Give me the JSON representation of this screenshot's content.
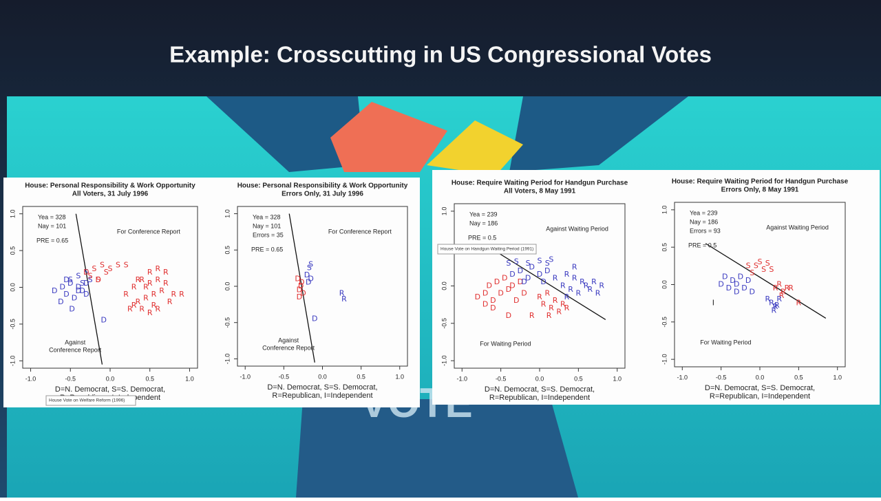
{
  "slide_title": "Example: Crosscutting in US Congressional Votes",
  "background_word": "VOTE",
  "tooltips": [
    "House Vote on Welfare Reform (1996)",
    "House Vote on Handgun Waiting Period (1991)"
  ],
  "chart_data": [
    {
      "type": "scatter",
      "title": "House: Personal Responsibility & Work Opportunity",
      "subtitle": "All Voters, 31 July 1996",
      "xlim": [
        -1.1,
        1.1
      ],
      "ylim": [
        -1.1,
        1.1
      ],
      "xticks": [
        {
          "value": -1,
          "label": "-1.0"
        },
        {
          "value": -0.5,
          "label": "-0.5"
        },
        {
          "value": 0,
          "label": "0.0"
        },
        {
          "value": 0.5,
          "label": "0.5"
        },
        {
          "value": 1,
          "label": "1.0"
        }
      ],
      "yticks": [
        {
          "value": -1,
          "label": "-1.0"
        },
        {
          "value": -0.5,
          "label": "-0.5"
        },
        {
          "value": 0,
          "label": "0.0"
        },
        {
          "value": 0.5,
          "label": "0.5"
        },
        {
          "value": 1,
          "label": "1.0"
        }
      ],
      "annotations": {
        "yea": "Yea = 328",
        "nay": "Nay = 101",
        "pre": "PRE = 0.65",
        "upper": "For Conference Report",
        "lower": [
          "Against",
          "Conference Report"
        ]
      },
      "caption": [
        "D=N. Democrat, S=S. Democrat,",
        "R=Republican, I=Independent"
      ],
      "cut_line": {
        "x": [
          -0.43,
          -0.1
        ],
        "y": [
          1.0,
          -1.05
        ]
      },
      "series": [
        {
          "name": "D",
          "color": "#3a3ac0",
          "x": [
            -0.7,
            -0.6,
            -0.55,
            -0.5,
            -0.45,
            -0.4,
            -0.35,
            -0.3,
            -0.62,
            -0.48,
            -0.4,
            -0.3,
            -0.08,
            -0.55
          ],
          "values": [
            -0.05,
            0.0,
            -0.1,
            0.05,
            -0.15,
            0.0,
            -0.05,
            0.05,
            -0.2,
            -0.3,
            -0.05,
            -0.1,
            -0.45,
            0.1
          ]
        },
        {
          "name": "S",
          "color": "#3a3ac0",
          "x": [
            -0.5,
            -0.4,
            -0.35,
            -0.3,
            -0.25
          ],
          "values": [
            0.1,
            0.15,
            0.05,
            0.2,
            0.1
          ]
        },
        {
          "name": "S",
          "color": "#e03030",
          "x": [
            -0.25,
            -0.2,
            -0.1,
            -0.05,
            0.0,
            0.1,
            0.2,
            -0.15
          ],
          "values": [
            0.15,
            0.25,
            0.3,
            0.2,
            0.25,
            0.3,
            0.3,
            0.1
          ]
        },
        {
          "name": "D",
          "color": "#e03030",
          "x": [
            -0.3,
            -0.15
          ],
          "values": [
            0.2,
            0.1
          ]
        },
        {
          "name": "R",
          "color": "#e03030",
          "x": [
            0.2,
            0.25,
            0.3,
            0.35,
            0.4,
            0.45,
            0.5,
            0.55,
            0.6,
            0.65,
            0.7,
            0.8,
            0.3,
            0.4,
            0.5,
            0.6,
            0.7,
            0.45,
            0.55,
            0.35,
            0.75,
            0.9,
            0.6,
            0.5
          ],
          "values": [
            -0.1,
            -0.3,
            0.0,
            -0.2,
            0.1,
            -0.15,
            0.05,
            -0.25,
            0.1,
            -0.05,
            0.2,
            -0.1,
            -0.25,
            -0.3,
            0.2,
            -0.3,
            0.05,
            0.0,
            -0.1,
            0.1,
            -0.2,
            -0.1,
            0.25,
            -0.35
          ]
        }
      ]
    },
    {
      "type": "scatter",
      "title": "House: Personal Responsibility & Work Opportunity",
      "subtitle": "Errors Only, 31 July 1996",
      "xlim": [
        -1.1,
        1.1
      ],
      "ylim": [
        -1.1,
        1.1
      ],
      "xticks": [
        {
          "value": -1,
          "label": "-1.0"
        },
        {
          "value": -0.5,
          "label": "-0.5"
        },
        {
          "value": 0,
          "label": "0.0"
        },
        {
          "value": 0.5,
          "label": "0.5"
        },
        {
          "value": 1,
          "label": "1.0"
        }
      ],
      "yticks": [
        {
          "value": -1,
          "label": "-1.0"
        },
        {
          "value": -0.5,
          "label": "-0.5"
        },
        {
          "value": 0,
          "label": "0.0"
        },
        {
          "value": 0.5,
          "label": "0.5"
        },
        {
          "value": 1,
          "label": "1.0"
        }
      ],
      "annotations": {
        "yea": "Yea = 328",
        "nay": "Nay = 101",
        "errors": "Errors = 35",
        "pre": "PRE = 0.65",
        "upper": "For Conference Report",
        "lower": [
          "Against",
          "Conference Report"
        ]
      },
      "caption": [
        "D=N. Democrat, S=S. Democrat,",
        "R=Republican, I=Independent"
      ],
      "cut_line": {
        "x": [
          -0.43,
          -0.1
        ],
        "y": [
          1.0,
          -1.05
        ]
      },
      "series": [
        {
          "name": "D",
          "color": "#e03030",
          "x": [
            -0.32,
            -0.28,
            -0.3,
            -0.25,
            -0.3,
            -0.27
          ],
          "values": [
            0.1,
            0.0,
            -0.05,
            -0.1,
            -0.15,
            0.05
          ]
        },
        {
          "name": "D",
          "color": "#3a3ac0",
          "x": [
            -0.2,
            -0.15,
            -0.18,
            -0.1
          ],
          "values": [
            0.15,
            0.1,
            0.05,
            -0.45
          ]
        },
        {
          "name": "S",
          "color": "#3a3ac0",
          "x": [
            -0.15,
            -0.17
          ],
          "values": [
            0.3,
            0.25
          ]
        },
        {
          "name": "R",
          "color": "#3a3ac0",
          "x": [
            0.25,
            0.28
          ],
          "values": [
            -0.1,
            -0.18
          ]
        }
      ]
    },
    {
      "type": "scatter",
      "title": "House: Require Waiting Period for Handgun Purchase",
      "subtitle": "All Voters, 8 May 1991",
      "xlim": [
        -1.1,
        1.1
      ],
      "ylim": [
        -1.1,
        1.1
      ],
      "xticks": [
        {
          "value": -1,
          "label": "-1.0"
        },
        {
          "value": -0.5,
          "label": "-0.5"
        },
        {
          "value": 0,
          "label": "0.0"
        },
        {
          "value": 0.5,
          "label": "0.5"
        },
        {
          "value": 1,
          "label": "1.0"
        }
      ],
      "yticks": [
        {
          "value": -1,
          "label": "-1.0"
        },
        {
          "value": -0.5,
          "label": "-0.5"
        },
        {
          "value": 0,
          "label": "0.0"
        },
        {
          "value": 0.5,
          "label": "0.5"
        },
        {
          "value": 1,
          "label": "1.0"
        }
      ],
      "annotations": {
        "yea": "Yea = 239",
        "nay": "Nay = 186",
        "pre": "PRE = 0.5",
        "upper": "Against Waiting Period",
        "lower": [
          "For Waiting Period"
        ]
      },
      "caption": [
        "D=N. Democrat, S=S. Democrat,",
        "R=Republican, I=Independent"
      ],
      "cut_line": {
        "x": [
          -0.7,
          0.85
        ],
        "y": [
          0.55,
          -0.45
        ]
      },
      "series": [
        {
          "name": "D",
          "color": "#e03030",
          "x": [
            -0.8,
            -0.7,
            -0.65,
            -0.6,
            -0.55,
            -0.5,
            -0.45,
            -0.4,
            -0.35,
            -0.3,
            -0.25,
            -0.2,
            -0.6,
            -0.4,
            -0.7
          ],
          "values": [
            -0.15,
            -0.1,
            0.0,
            -0.2,
            0.05,
            -0.1,
            0.1,
            -0.05,
            0.0,
            -0.2,
            0.05,
            -0.1,
            -0.3,
            -0.4,
            -0.25
          ]
        },
        {
          "name": "D",
          "color": "#3a3ac0",
          "x": [
            -0.35,
            -0.25,
            -0.15,
            -0.1,
            0.0,
            0.1,
            -0.2,
            0.05
          ],
          "values": [
            0.15,
            0.2,
            0.1,
            0.25,
            0.15,
            0.2,
            0.05,
            0.05
          ]
        },
        {
          "name": "S",
          "color": "#3a3ac0",
          "x": [
            -0.4,
            -0.3,
            -0.15,
            0.0,
            0.1,
            0.15
          ],
          "values": [
            0.3,
            0.32,
            0.3,
            0.33,
            0.3,
            0.35
          ]
        },
        {
          "name": "R",
          "color": "#3a3ac0",
          "x": [
            0.2,
            0.3,
            0.35,
            0.4,
            0.45,
            0.5,
            0.55,
            0.6,
            0.65,
            0.7,
            0.75,
            0.8,
            0.45,
            0.35
          ],
          "values": [
            0.1,
            0.0,
            0.15,
            -0.05,
            0.1,
            -0.1,
            0.05,
            0.0,
            -0.05,
            0.05,
            -0.1,
            0.0,
            0.25,
            -0.15
          ]
        },
        {
          "name": "R",
          "color": "#e03030",
          "x": [
            0.0,
            0.05,
            0.1,
            0.15,
            0.2,
            0.25,
            0.3,
            0.35,
            0.12,
            -0.1
          ],
          "values": [
            -0.15,
            -0.25,
            -0.1,
            -0.3,
            -0.2,
            -0.35,
            -0.25,
            -0.3,
            -0.4,
            -0.4
          ]
        }
      ]
    },
    {
      "type": "scatter",
      "title": "House: Require Waiting Period for Handgun Purchase",
      "subtitle": "Errors Only, 8 May 1991",
      "xlim": [
        -1.1,
        1.1
      ],
      "ylim": [
        -1.1,
        1.1
      ],
      "xticks": [
        {
          "value": -1,
          "label": "-1.0"
        },
        {
          "value": -0.5,
          "label": "-0.5"
        },
        {
          "value": 0,
          "label": "0.0"
        },
        {
          "value": 0.5,
          "label": "0.5"
        },
        {
          "value": 1,
          "label": "1.0"
        }
      ],
      "yticks": [
        {
          "value": -1,
          "label": "-1.0"
        },
        {
          "value": -0.5,
          "label": "-0.5"
        },
        {
          "value": 0,
          "label": "0.0"
        },
        {
          "value": 0.5,
          "label": "0.5"
        },
        {
          "value": 1,
          "label": "1.0"
        }
      ],
      "annotations": {
        "yea": "Yea = 239",
        "nay": "Nay = 186",
        "errors": "Errors = 93",
        "pre": "PRE = 0.5",
        "upper": "Against Waiting Period",
        "lower": [
          "For Waiting Period"
        ]
      },
      "caption": [
        "D=N. Democrat, S=S. Democrat,",
        "R=Republican, I=Independent"
      ],
      "cut_line": {
        "x": [
          -0.7,
          0.85
        ],
        "y": [
          0.55,
          -0.45
        ]
      },
      "series": [
        {
          "name": "S",
          "color": "#e03030",
          "x": [
            -0.05,
            0.0,
            0.05,
            0.1,
            -0.15,
            -0.1,
            0.15
          ],
          "values": [
            0.25,
            0.3,
            0.2,
            0.28,
            0.25,
            0.15,
            0.2
          ]
        },
        {
          "name": "R",
          "color": "#e03030",
          "x": [
            0.2,
            0.25,
            0.3,
            0.35,
            0.4,
            0.28,
            0.5
          ],
          "values": [
            -0.05,
            0.0,
            -0.1,
            -0.05,
            -0.05,
            -0.15,
            -0.25
          ]
        },
        {
          "name": "D",
          "color": "#3a3ac0",
          "x": [
            -0.5,
            -0.45,
            -0.4,
            -0.35,
            -0.3,
            -0.25,
            -0.2,
            -0.1,
            -0.15,
            -0.3
          ],
          "values": [
            0.0,
            0.1,
            -0.05,
            0.05,
            0.0,
            0.1,
            -0.05,
            -0.1,
            0.05,
            -0.1
          ]
        },
        {
          "name": "R",
          "color": "#3a3ac0",
          "x": [
            0.1,
            0.15,
            0.2,
            0.25,
            0.18,
            0.22
          ],
          "values": [
            -0.2,
            -0.25,
            -0.3,
            -0.2,
            -0.35,
            -0.28
          ]
        },
        {
          "name": "I",
          "color": "#222222",
          "x": [
            -0.6
          ],
          "values": [
            -0.25
          ]
        }
      ]
    }
  ]
}
